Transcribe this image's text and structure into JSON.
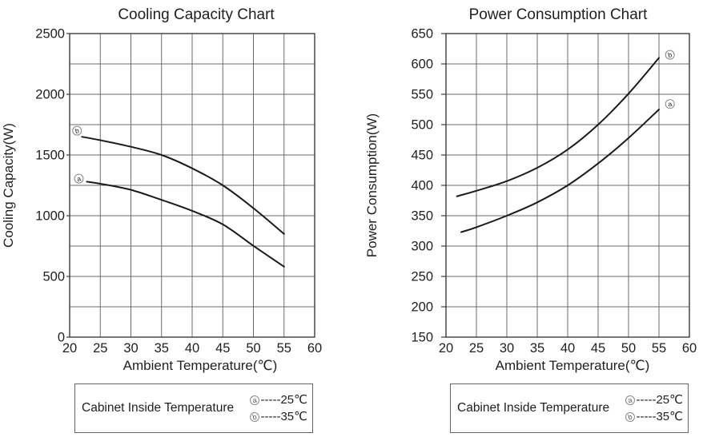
{
  "page": {
    "background": "#ffffff"
  },
  "colors": {
    "title_blue": "#2A7DBE",
    "curve": "#1a1a1a",
    "grid": "#6b6b6b",
    "axis_border": "#3c3c3c",
    "text": "#1f1f1f",
    "muted": "#555555"
  },
  "chart_data": [
    {
      "type": "line",
      "title": "Cooling Capacity Chart",
      "xlabel": "Ambient Temperature(℃)",
      "ylabel": "Cooling  Capacity(W)",
      "xlim": [
        20,
        60
      ],
      "x_tick_step": 5,
      "ylim": [
        0,
        2500
      ],
      "y_tick_step": 500,
      "y_grid_step": 250,
      "grid": true,
      "legend_position": "bottom-box",
      "series": [
        {
          "name": "curve-b",
          "marker": "b",
          "cabinet_temp": "35℃",
          "points": [
            [
              22,
              1650
            ],
            [
              25,
              1622
            ],
            [
              30,
              1568
            ],
            [
              35,
              1500
            ],
            [
              40,
              1390
            ],
            [
              45,
              1250
            ],
            [
              50,
              1062
            ],
            [
              55,
              850
            ]
          ],
          "marker_pos": [
            21.2,
            1700
          ]
        },
        {
          "name": "curve-a",
          "marker": "a",
          "cabinet_temp": "25℃",
          "points": [
            [
              22.8,
              1280
            ],
            [
              25,
              1263
            ],
            [
              30,
              1213
            ],
            [
              35,
              1130
            ],
            [
              40,
              1040
            ],
            [
              45,
              928
            ],
            [
              50,
              752
            ],
            [
              55,
              580
            ]
          ],
          "marker_pos": [
            21.5,
            1305
          ]
        }
      ],
      "legend": {
        "label": "Cabinet Inside Temperature",
        "entries": [
          {
            "marker": "a",
            "text": "-----25℃"
          },
          {
            "marker": "b",
            "text": "-----35℃"
          }
        ]
      }
    },
    {
      "type": "line",
      "title": "Power Consumption Chart",
      "xlabel": "Ambient Temperature(℃)",
      "ylabel": "Power Consumption(W)",
      "xlim": [
        20,
        60
      ],
      "x_tick_step": 5,
      "ylim": [
        150,
        650
      ],
      "y_tick_step": 50,
      "y_grid_step": 50,
      "grid": true,
      "legend_position": "bottom-box",
      "series": [
        {
          "name": "curve-b",
          "marker": "b",
          "cabinet_temp": "35℃",
          "points": [
            [
              21.8,
              382
            ],
            [
              25,
              391
            ],
            [
              30,
              407
            ],
            [
              35,
              429
            ],
            [
              40,
              459
            ],
            [
              45,
              500
            ],
            [
              50,
              551
            ],
            [
              55,
              610
            ]
          ],
          "marker_pos": [
            56.8,
            615
          ]
        },
        {
          "name": "curve-a",
          "marker": "a",
          "cabinet_temp": "25℃",
          "points": [
            [
              22.5,
              323
            ],
            [
              25,
              331
            ],
            [
              30,
              350
            ],
            [
              35,
              372
            ],
            [
              40,
              400
            ],
            [
              45,
              436
            ],
            [
              50,
              478
            ],
            [
              55,
              525
            ]
          ],
          "marker_pos": [
            56.8,
            534
          ]
        }
      ],
      "legend": {
        "label": "Cabinet Inside Temperature",
        "entries": [
          {
            "marker": "a",
            "text": "-----25℃"
          },
          {
            "marker": "b",
            "text": "-----35℃"
          }
        ]
      }
    }
  ]
}
